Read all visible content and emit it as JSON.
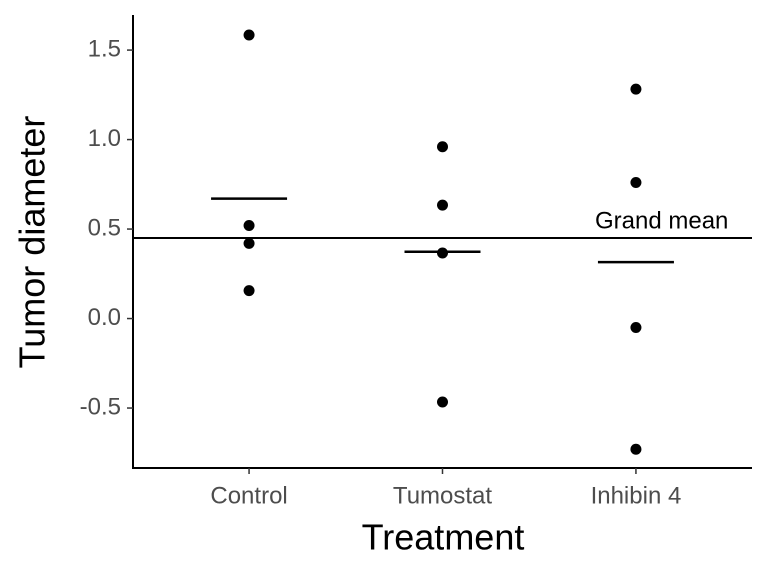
{
  "chart_data": {
    "type": "strip",
    "x_label": "Treatment",
    "y_label": "Tumor diameter",
    "categories": [
      "Control",
      "Tumostat",
      "Inhibin 4"
    ],
    "values": [
      [
        1.584,
        0.52,
        0.42,
        0.156
      ],
      [
        0.96,
        0.634,
        0.366,
        -0.466
      ],
      [
        1.282,
        0.76,
        -0.05,
        -0.73
      ]
    ],
    "means": [
      0.67,
      0.3735,
      0.3155
    ],
    "reference_line": {
      "value": 0.45,
      "label": "Grand mean"
    },
    "color": "#000000",
    "ylim": [
      -0.835,
      1.696
    ],
    "yticks": [
      -0.5,
      {
        "value": 0,
        "label": "0.0"
      },
      0.5,
      {
        "value": 1,
        "label": "1.0"
      },
      1.5
    ]
  }
}
